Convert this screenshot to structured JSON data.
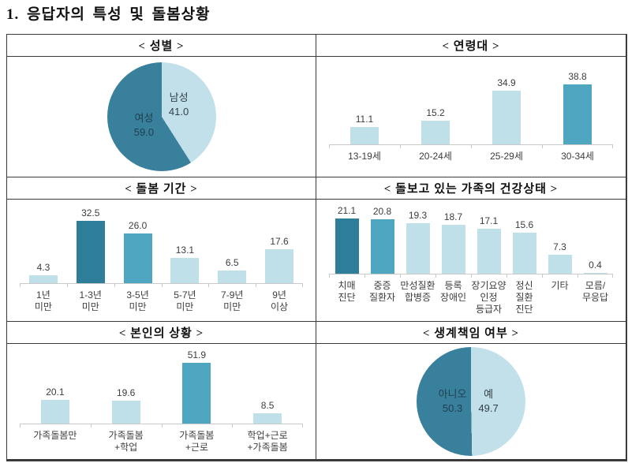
{
  "title": "1. 응답자의 특성 및 돌봄상황",
  "colors": {
    "bar_dark": "#2E7D99",
    "bar_medium": "#4FA6C1",
    "bar_light": "#BFDFE9",
    "pie_dark": "#38809B",
    "pie_light": "#C2E0EA",
    "axis": "#C9C9C9",
    "value_label": "#3D3D3D",
    "pie_label_on_dark": "#1E3E4E",
    "pie_label_on_light": "#333F47",
    "border": "#3A3A3A"
  },
  "chart_data": [
    {
      "panel": "gender",
      "type": "pie",
      "title": "< 성별 >",
      "legend_position": "inside",
      "slices": [
        {
          "label": "남성",
          "value": 41.0,
          "color": "light"
        },
        {
          "label": "여성",
          "value": 59.0,
          "color": "dark"
        }
      ]
    },
    {
      "panel": "age-group",
      "type": "bar",
      "title": "< 연령대 >",
      "categories": [
        "13-19세",
        "20-24세",
        "25-29세",
        "30-34세"
      ],
      "values": [
        11.1,
        15.2,
        34.9,
        38.8
      ],
      "bar_colors": [
        "light",
        "light",
        "light",
        "medium"
      ],
      "ylim": [
        0,
        45
      ],
      "grid": false,
      "value_labels": true
    },
    {
      "panel": "care-duration",
      "type": "bar",
      "title": "< 돌봄 기간 >",
      "categories": [
        "1년\n미만",
        "1-3년\n미만",
        "3-5년\n미만",
        "5-7년\n미만",
        "7-9년\n미만",
        "9년\n이상"
      ],
      "values": [
        4.3,
        32.5,
        26.0,
        13.1,
        6.5,
        17.6
      ],
      "bar_colors": [
        "light",
        "dark",
        "medium",
        "light",
        "light",
        "light"
      ],
      "ylim": [
        0,
        38
      ],
      "grid": false,
      "value_labels": true
    },
    {
      "panel": "family-health-status",
      "type": "bar",
      "title": "< 돌보고 있는 가족의 건강상태 >",
      "categories": [
        "치매\n진단",
        "중증\n질환자",
        "만성질환\n합병증",
        "등록\n장애인",
        "장기요양\n인정\n등급자",
        "정신\n질환\n진단",
        "기타",
        "모름/\n무응답"
      ],
      "values": [
        21.1,
        20.8,
        19.3,
        18.7,
        17.1,
        15.6,
        7.3,
        0.4
      ],
      "bar_colors": [
        "dark",
        "medium",
        "light",
        "light",
        "light",
        "light",
        "light",
        "light"
      ],
      "ylim": [
        0,
        24
      ],
      "grid": false,
      "value_labels": true
    },
    {
      "panel": "own-situation",
      "type": "bar",
      "title": "< 본인의 상황 >",
      "categories": [
        "가족돌봄만",
        "가족돌봄\n+학업",
        "가족돌봄\n+근로",
        "학업+근로\n+가족돌봄"
      ],
      "values": [
        20.1,
        19.6,
        51.9,
        8.5
      ],
      "bar_colors": [
        "light",
        "light",
        "medium",
        "light"
      ],
      "ylim": [
        0,
        58
      ],
      "grid": false,
      "value_labels": true
    },
    {
      "panel": "breadwinner-status",
      "type": "pie",
      "title": "< 생계책임 여부 >",
      "legend_position": "inside",
      "slices": [
        {
          "label": "예",
          "value": 49.7,
          "color": "light"
        },
        {
          "label": "아니오",
          "value": 50.3,
          "color": "dark"
        }
      ]
    }
  ]
}
